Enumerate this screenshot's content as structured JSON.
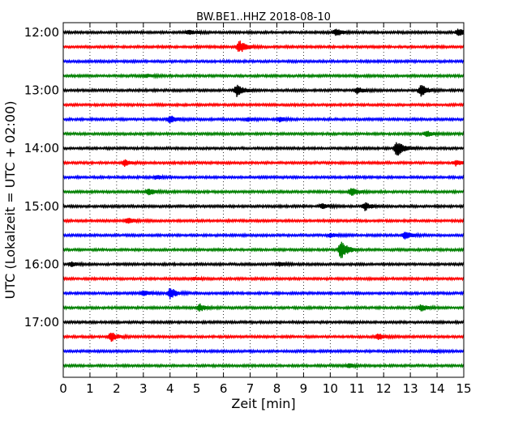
{
  "chart_data": {
    "type": "line",
    "title": "BW.BE1..HHZ 2018-08-10",
    "xlabel": "Zeit  [min]",
    "ylabel": "UTC (Lokalzeit = UTC + 02:00)",
    "xlim": [
      0,
      15
    ],
    "x_ticks": [
      "0",
      "1",
      "2",
      "3",
      "4",
      "5",
      "6",
      "7",
      "8",
      "9",
      "10",
      "11",
      "12",
      "13",
      "14",
      "15"
    ],
    "y_ticks": [
      {
        "label": "12:00",
        "trace": 0
      },
      {
        "label": "13:00",
        "trace": 4
      },
      {
        "label": "14:00",
        "trace": 8
      },
      {
        "label": "15:00",
        "trace": 12
      },
      {
        "label": "16:00",
        "trace": 16
      },
      {
        "label": "17:00",
        "trace": 20
      }
    ],
    "grid": "vertical-dotted",
    "trace_interval_min": 15,
    "color_cycle": [
      "#000000",
      "#ff0000",
      "#0000ff",
      "#008000"
    ],
    "traces": [
      {
        "start": "12:00",
        "events": [
          {
            "t": 4.7,
            "amp": 0.25
          },
          {
            "t": 10.2,
            "amp": 0.4
          },
          {
            "t": 14.8,
            "amp": 0.35
          }
        ]
      },
      {
        "start": "12:15",
        "events": [
          {
            "t": 6.6,
            "amp": 0.7
          }
        ]
      },
      {
        "start": "12:30",
        "events": []
      },
      {
        "start": "12:45",
        "events": [
          {
            "t": 3.1,
            "amp": 0.2
          }
        ]
      },
      {
        "start": "13:00",
        "events": [
          {
            "t": 6.5,
            "amp": 0.7
          },
          {
            "t": 11.0,
            "amp": 0.35
          },
          {
            "t": 13.4,
            "amp": 0.6
          }
        ]
      },
      {
        "start": "13:15",
        "events": []
      },
      {
        "start": "13:30",
        "events": [
          {
            "t": 4.0,
            "amp": 0.45
          },
          {
            "t": 6.9,
            "amp": 0.2
          },
          {
            "t": 8.1,
            "amp": 0.25
          }
        ]
      },
      {
        "start": "13:45",
        "events": [
          {
            "t": 13.6,
            "amp": 0.3
          }
        ]
      },
      {
        "start": "14:00",
        "events": [
          {
            "t": 12.5,
            "amp": 0.9
          }
        ]
      },
      {
        "start": "14:15",
        "events": [
          {
            "t": 2.3,
            "amp": 0.3
          },
          {
            "t": 14.7,
            "amp": 0.35
          }
        ]
      },
      {
        "start": "14:30",
        "events": [
          {
            "t": 3.5,
            "amp": 0.2
          }
        ]
      },
      {
        "start": "14:45",
        "events": [
          {
            "t": 3.2,
            "amp": 0.35
          },
          {
            "t": 10.8,
            "amp": 0.4
          }
        ]
      },
      {
        "start": "15:00",
        "events": [
          {
            "t": 9.7,
            "amp": 0.3
          },
          {
            "t": 11.3,
            "amp": 0.45
          }
        ]
      },
      {
        "start": "15:15",
        "events": [
          {
            "t": 2.4,
            "amp": 0.35
          }
        ]
      },
      {
        "start": "15:30",
        "events": [
          {
            "t": 10.0,
            "amp": 0.2
          },
          {
            "t": 12.8,
            "amp": 0.4
          }
        ]
      },
      {
        "start": "15:45",
        "events": [
          {
            "t": 10.4,
            "amp": 1.0
          }
        ]
      },
      {
        "start": "16:00",
        "events": [
          {
            "t": 0.3,
            "amp": 0.25
          },
          {
            "t": 8.1,
            "amp": 0.2
          }
        ]
      },
      {
        "start": "16:15",
        "events": [
          {
            "t": 4.9,
            "amp": 0.15
          }
        ]
      },
      {
        "start": "16:30",
        "events": [
          {
            "t": 3.0,
            "amp": 0.3
          },
          {
            "t": 4.0,
            "amp": 0.6
          }
        ]
      },
      {
        "start": "16:45",
        "events": [
          {
            "t": 5.1,
            "amp": 0.4
          },
          {
            "t": 13.4,
            "amp": 0.35
          }
        ]
      },
      {
        "start": "17:00",
        "events": []
      },
      {
        "start": "17:15",
        "events": [
          {
            "t": 1.8,
            "amp": 0.45
          },
          {
            "t": 11.8,
            "amp": 0.3
          }
        ]
      },
      {
        "start": "17:30",
        "events": [
          {
            "t": 13.9,
            "amp": 0.15
          }
        ]
      },
      {
        "start": "17:45",
        "events": [
          {
            "t": 10.7,
            "amp": 0.25
          }
        ]
      }
    ]
  }
}
